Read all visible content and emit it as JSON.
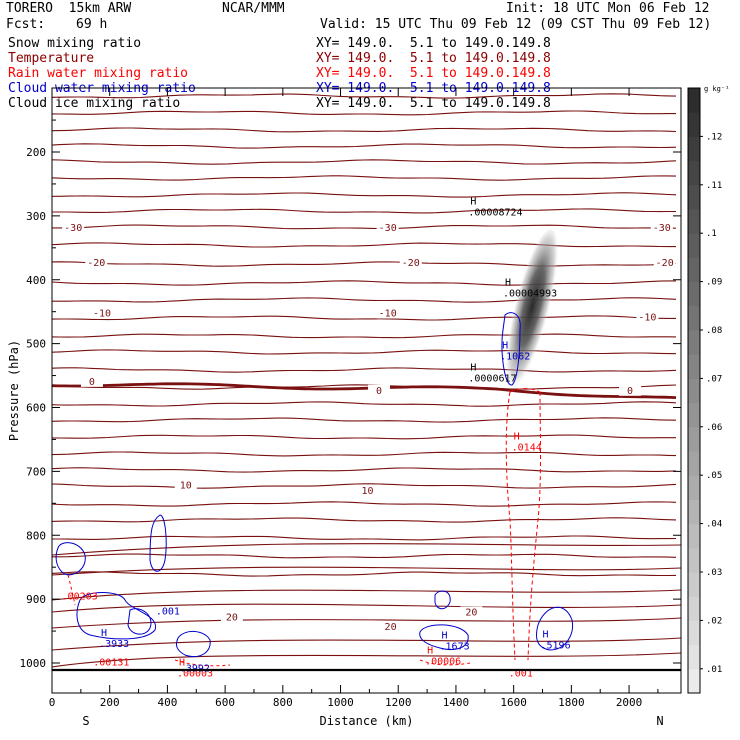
{
  "header": {
    "model": "TORERO  15km ARW",
    "org": "NCAR/MMM",
    "init": "Init: 18 UTC Mon 06 Feb 12",
    "fcst_label": "Fcst:",
    "fcst_value": "69 h",
    "valid": "Valid: 15 UTC Thu 09 Feb 12 (09 CST Thu 09 Feb 12)"
  },
  "fields": [
    {
      "name": "Snow mixing ratio",
      "xy": "XY= 149.0.  5.1 to 149.0.149.8",
      "color": "#000000"
    },
    {
      "name": "Temperature",
      "xy": "XY= 149.0.  5.1 to 149.0.149.8",
      "color": "#8b0000"
    },
    {
      "name": "Rain water mixing ratio",
      "xy": "XY= 149.0.  5.1 to 149.0.149.8",
      "color": "#ff0000"
    },
    {
      "name": "Cloud water mixing ratio",
      "xy": "XY= 149.0.  5.1 to 149.0.149.8",
      "color": "#0000cc"
    },
    {
      "name": "Cloud ice mixing ratio",
      "xy": "XY= 149.0.  5.1 to 149.0.149.8",
      "color": "#000000"
    }
  ],
  "chart_data": {
    "type": "cross-section",
    "xlabel": "Distance (km)",
    "ylabel": "Pressure (hPa)",
    "xlim": [
      0,
      2180
    ],
    "ylim_hpa": [
      100,
      1050
    ],
    "x_ticks": [
      0,
      200,
      400,
      600,
      800,
      1000,
      1200,
      1400,
      1600,
      1800,
      2000
    ],
    "y_ticks": [
      200,
      300,
      400,
      500,
      600,
      700,
      800,
      900,
      1000
    ],
    "x_end_labels": {
      "left": "S",
      "right": "N"
    },
    "colorbar": {
      "unit": "g kg⁻¹",
      "ticks": [
        ".01",
        ".02",
        ".03",
        ".04",
        ".05",
        ".06",
        ".07",
        ".08",
        ".09",
        ".1",
        ".11",
        ".12"
      ],
      "values": [
        0.01,
        0.02,
        0.03,
        0.04,
        0.05,
        0.06,
        0.07,
        0.08,
        0.09,
        0.1,
        0.11,
        0.12
      ],
      "range": [
        0.005,
        0.13
      ]
    },
    "isotherm_labels": [
      {
        "label": "-30",
        "x": 70,
        "p": 322
      },
      {
        "label": "-30",
        "x": 1160,
        "p": 322
      },
      {
        "label": "-30",
        "x": 2110,
        "p": 322
      },
      {
        "label": "-20",
        "x": 150,
        "p": 377
      },
      {
        "label": "-20",
        "x": 1240,
        "p": 377
      },
      {
        "label": "-20",
        "x": 2120,
        "p": 377
      },
      {
        "label": "-10",
        "x": 170,
        "p": 456
      },
      {
        "label": "-10",
        "x": 1160,
        "p": 456
      },
      {
        "label": "-10",
        "x": 2060,
        "p": 462
      },
      {
        "label": "0",
        "x": 135,
        "p": 563
      },
      {
        "label": "0",
        "x": 1130,
        "p": 577
      },
      {
        "label": "0",
        "x": 2000,
        "p": 577
      },
      {
        "label": "10",
        "x": 460,
        "p": 725
      },
      {
        "label": "10",
        "x": 1090,
        "p": 734
      },
      {
        "label": "20",
        "x": 620,
        "p": 932
      },
      {
        "label": "20",
        "x": 1170,
        "p": 947
      },
      {
        "label": "20",
        "x": 1450,
        "p": 924
      }
    ],
    "maxima_labels": [
      {
        "field": "Snow mixing ratio",
        "letter": "H",
        "value": ".00008724",
        "x": 1450,
        "p": 282
      },
      {
        "field": "Snow mixing ratio",
        "letter": "H",
        "value": ".00004993",
        "x": 1570,
        "p": 409
      },
      {
        "field": "Snow mixing ratio",
        "letter": "H",
        "value": ".0000617",
        "x": 1450,
        "p": 542
      },
      {
        "field": "Cloud water mixing ratio",
        "letter": "H",
        "value": ".1062",
        "x": 1560,
        "p": 508
      },
      {
        "field": "Rain water mixing ratio",
        "letter": "H",
        "value": ".0144",
        "x": 1600,
        "p": 650
      },
      {
        "field": "Rain water mixing ratio",
        "letter": "",
        "value": ".00203",
        "x": 40,
        "p": 883
      },
      {
        "field": "Cloud water mixing ratio",
        "letter": ".001",
        "value": "",
        "x": 360,
        "p": 924
      },
      {
        "field": "Cloud water mixing ratio",
        "letter": "H",
        "value": ".3933",
        "x": 170,
        "p": 958
      },
      {
        "field": "Rain water mixing ratio",
        "letter": "",
        "value": ".00131",
        "x": 150,
        "p": 987
      },
      {
        "field": "Rain water mixing ratio",
        "letter": "H",
        "value": ".00003",
        "x": 440,
        "p": 1004
      },
      {
        "field": "Cloud water mixing ratio",
        "letter": "",
        "value": ".3992",
        "x": 450,
        "p": 996
      },
      {
        "field": "Cloud water mixing ratio",
        "letter": "H",
        "value": ".1673",
        "x": 1350,
        "p": 962
      },
      {
        "field": "Rain water mixing ratio",
        "letter": "H",
        "value": ".00006",
        "x": 1300,
        "p": 985
      },
      {
        "field": "Cloud water mixing ratio",
        "letter": "H",
        "value": ".5196",
        "x": 1700,
        "p": 960
      },
      {
        "field": "Rain water mixing ratio",
        "letter": "",
        "value": ".001",
        "x": 1590,
        "p": 1004
      }
    ]
  },
  "colors": {
    "temperature": "#7a1010",
    "rain": "#ff0000",
    "cloud_water": "#0000cc",
    "snow": "#000000",
    "background": "#ffffff"
  }
}
